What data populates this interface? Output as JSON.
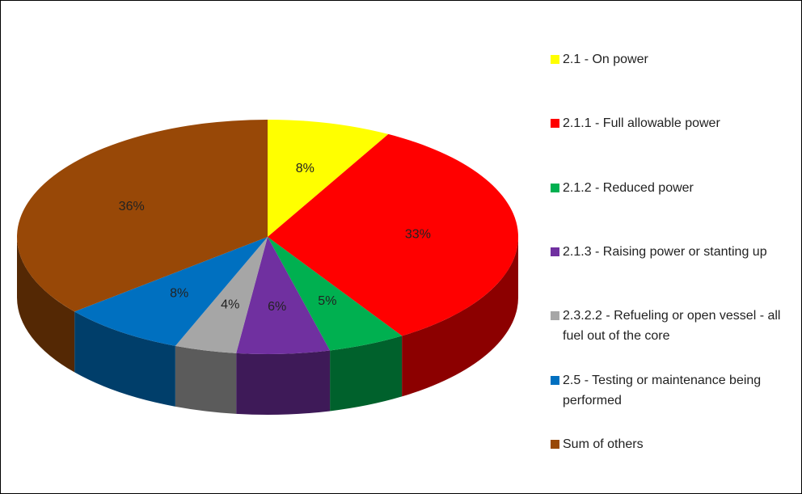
{
  "chart_data": {
    "type": "pie3d",
    "categories": [
      "2.1 - On power",
      "2.1.1 - Full allowable power",
      "2.1.2 - Reduced power",
      "2.1.3 - Raising power or stanting up",
      "2.3.2.2 - Refueling or open vessel - all fuel out of the core",
      "2.5 - Testing or maintenance being performed",
      "Sum of others"
    ],
    "values": [
      8,
      33,
      5,
      6,
      4,
      8,
      36
    ],
    "value_labels": [
      "8%",
      "33%",
      "5%",
      "6%",
      "4%",
      "8%",
      "36%"
    ],
    "colors": [
      "#ffff00",
      "#ff0000",
      "#00b050",
      "#7030a0",
      "#a6a6a6",
      "#0070c0",
      "#984807"
    ],
    "legend": "right"
  }
}
